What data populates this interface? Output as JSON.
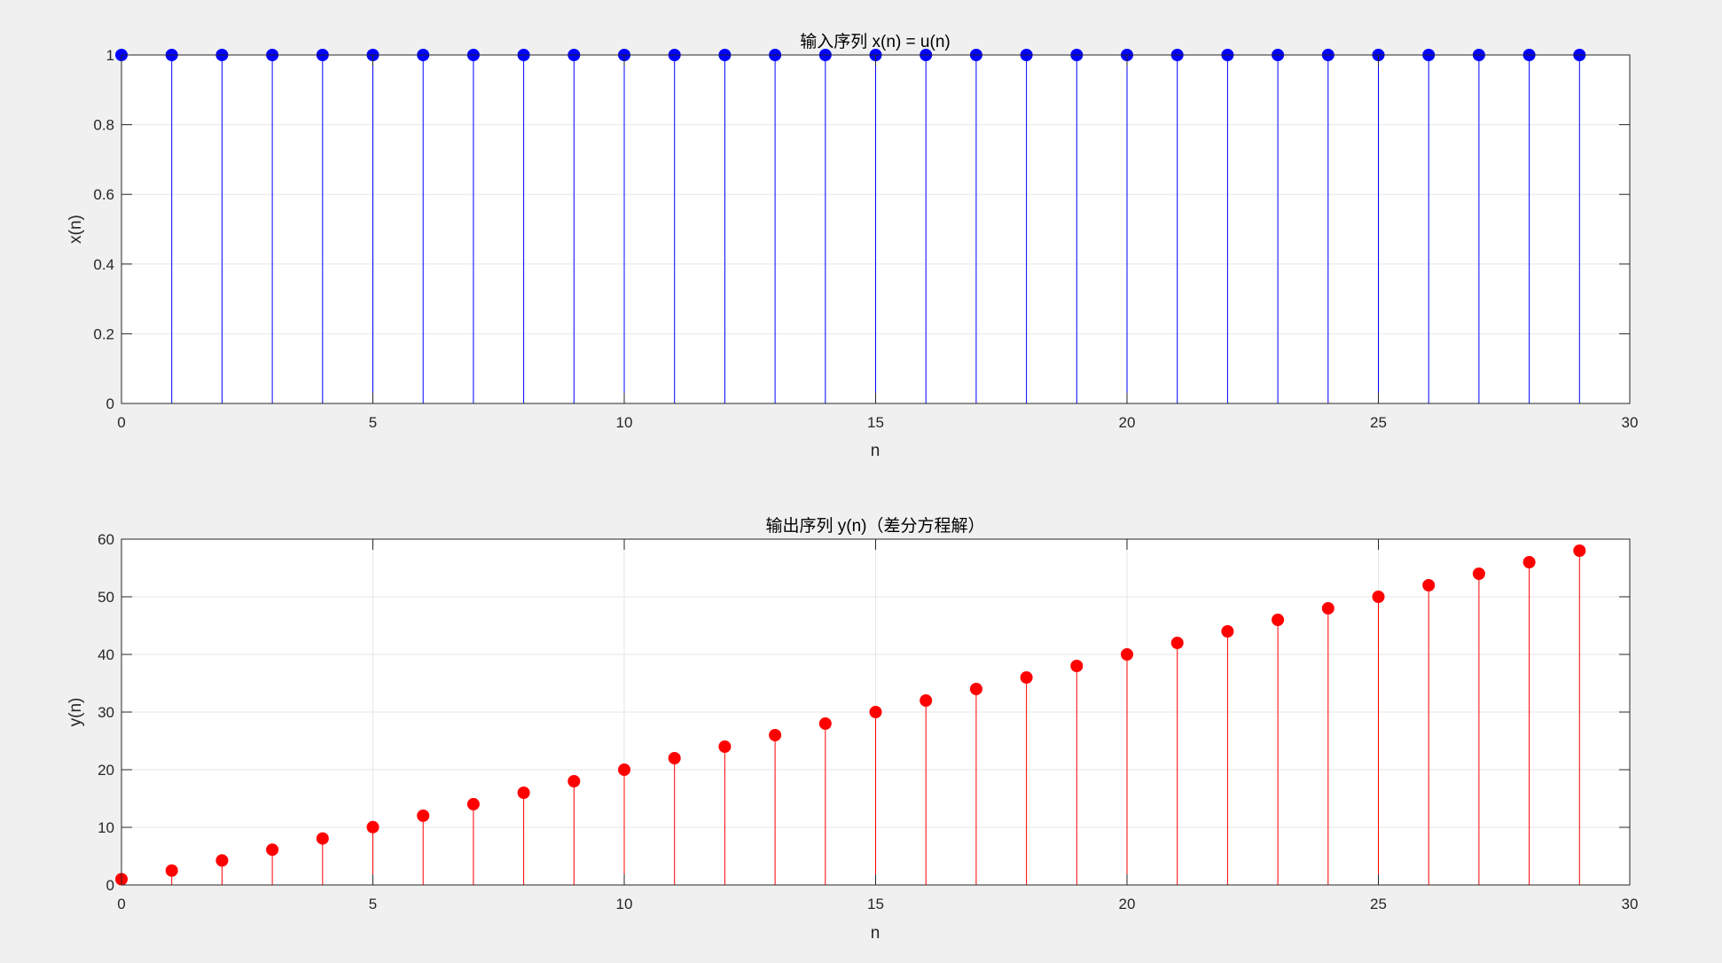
{
  "chart_data": [
    {
      "type": "stem",
      "title": "输入序列 x(n) = u(n)",
      "xlabel": "n",
      "ylabel": "x(n)",
      "xlim": [
        0,
        30
      ],
      "ylim": [
        0,
        1
      ],
      "xticks": [
        "0",
        "5",
        "10",
        "15",
        "20",
        "25",
        "30"
      ],
      "yticks": [
        "0",
        "0.2",
        "0.4",
        "0.6",
        "0.8",
        "1"
      ],
      "grid": true,
      "color": "#0000ff",
      "series": [
        {
          "x": [
            0,
            1,
            2,
            3,
            4,
            5,
            6,
            7,
            8,
            9,
            10,
            11,
            12,
            13,
            14,
            15,
            16,
            17,
            18,
            19,
            20,
            21,
            22,
            23,
            24,
            25,
            26,
            27,
            28,
            29
          ],
          "values": [
            1,
            1,
            1,
            1,
            1,
            1,
            1,
            1,
            1,
            1,
            1,
            1,
            1,
            1,
            1,
            1,
            1,
            1,
            1,
            1,
            1,
            1,
            1,
            1,
            1,
            1,
            1,
            1,
            1,
            1
          ]
        }
      ]
    },
    {
      "type": "stem",
      "title": "输出序列 y(n)（差分方程解）",
      "xlabel": "n",
      "ylabel": "y(n)",
      "xlim": [
        0,
        30
      ],
      "ylim": [
        0,
        60
      ],
      "xticks": [
        "0",
        "5",
        "10",
        "15",
        "20",
        "25",
        "30"
      ],
      "yticks": [
        "0",
        "10",
        "20",
        "30",
        "40",
        "50",
        "60"
      ],
      "grid": true,
      "color": "#ff0000",
      "series": [
        {
          "x": [
            0,
            1,
            2,
            3,
            4,
            5,
            6,
            7,
            8,
            9,
            10,
            11,
            12,
            13,
            14,
            15,
            16,
            17,
            18,
            19,
            20,
            21,
            22,
            23,
            24,
            25,
            26,
            27,
            28,
            29
          ],
          "values": [
            1,
            2.5,
            4.25,
            6.125,
            8.06,
            10.03,
            12.02,
            14.01,
            16,
            18,
            20,
            22,
            24,
            26,
            28,
            30,
            32,
            34,
            36,
            38,
            40,
            42,
            44,
            46,
            48,
            50,
            52,
            54,
            56,
            58
          ]
        }
      ]
    }
  ]
}
